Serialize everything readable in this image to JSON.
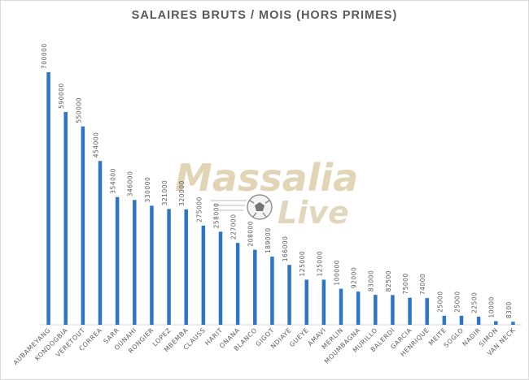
{
  "watermark": {
    "line1": "Massalia",
    "line2": "Live",
    "color_main": "#c9b27a",
    "color_accent": "#cdbd92",
    "ball_icon": "soccer-ball-icon"
  },
  "chart_data": {
    "type": "bar",
    "title": "SALAIRES BRUTS / MOIS   (HORS PRIMES)",
    "xlabel": "",
    "ylabel": "",
    "ylim": [
      0,
      720000
    ],
    "grid": false,
    "legend": "none",
    "bar_color": "#2e75c6",
    "categories": [
      "AUBAMEYANG",
      "KONDOGBIA",
      "VERETOUT",
      "CORREA",
      "SARR",
      "OUNAHI",
      "RONGIER",
      "LOPEZ",
      "MBEMBA",
      "CLAUSS",
      "HARIT",
      "ONANA",
      "BLANCO",
      "GIGOT",
      "NDIAYE",
      "GUEYE",
      "AMAVI",
      "MERLIN",
      "MOUMBAGNA",
      "MURILLO",
      "BALERDI",
      "GARCIA",
      "HENRIQUE",
      "MEITE",
      "SOGLO",
      "NADIR",
      "SIMON",
      "VAN NECK"
    ],
    "values": [
      700000,
      590000,
      550000,
      454000,
      354000,
      346000,
      330000,
      321000,
      320000,
      275000,
      258000,
      227000,
      208000,
      189000,
      166000,
      125000,
      125000,
      100000,
      92000,
      83000,
      82500,
      75000,
      74000,
      25000,
      25000,
      22500,
      10000,
      8300
    ]
  }
}
